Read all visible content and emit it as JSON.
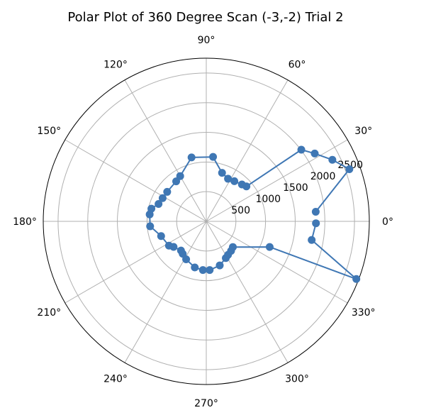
{
  "chart_data": {
    "type": "scatter",
    "projection": "polar",
    "title": "Polar Plot of 360 Degree Scan (-3,-2) Trial 2",
    "theta_ticks": [
      "0°",
      "30°",
      "60°",
      "90°",
      "120°",
      "150°",
      "180°",
      "210°",
      "240°",
      "270°",
      "300°",
      "330°"
    ],
    "r_ticks": [
      "500",
      "1000",
      "1500",
      "2000",
      "2500"
    ],
    "r_tick_values": [
      500,
      1000,
      1500,
      2000,
      2500
    ],
    "rlim": [
      0,
      2750
    ],
    "grid": true,
    "line_color": "#3f77b4",
    "marker": "circle",
    "series": [
      {
        "points": [
          {
            "theta": 5,
            "r": 1853
          },
          {
            "theta": 20,
            "r": 2568
          },
          {
            "theta": 26,
            "r": 2366
          },
          {
            "theta": 32,
            "r": 2157
          },
          {
            "theta": 37,
            "r": 2007
          },
          {
            "theta": 41,
            "r": 897
          },
          {
            "theta": 46,
            "r": 865
          },
          {
            "theta": 55,
            "r": 826
          },
          {
            "theta": 63,
            "r": 806
          },
          {
            "theta": 72,
            "r": 860
          },
          {
            "theta": 84,
            "r": 1092
          },
          {
            "theta": 103,
            "r": 1106
          },
          {
            "theta": 120,
            "r": 881
          },
          {
            "theta": 127,
            "r": 844
          },
          {
            "theta": 143,
            "r": 826
          },
          {
            "theta": 152,
            "r": 834
          },
          {
            "theta": 160,
            "r": 857
          },
          {
            "theta": 167,
            "r": 950
          },
          {
            "theta": 173,
            "r": 962
          },
          {
            "theta": 185,
            "r": 951
          },
          {
            "theta": 198,
            "r": 801
          },
          {
            "theta": 213,
            "r": 751
          },
          {
            "theta": 218,
            "r": 700
          },
          {
            "theta": 229,
            "r": 651
          },
          {
            "theta": 234,
            "r": 676
          },
          {
            "theta": 242,
            "r": 724
          },
          {
            "theta": 256,
            "r": 801
          },
          {
            "theta": 266,
            "r": 822
          },
          {
            "theta": 274,
            "r": 823
          },
          {
            "theta": 287,
            "r": 776
          },
          {
            "theta": 298,
            "r": 701
          },
          {
            "theta": 303,
            "r": 673
          },
          {
            "theta": 310,
            "r": 650
          },
          {
            "theta": 316,
            "r": 623
          },
          {
            "theta": 338,
            "r": 1153
          },
          {
            "theta": 339,
            "r": 2711
          },
          {
            "theta": 350,
            "r": 1805
          },
          {
            "theta": 359,
            "r": 1850
          }
        ]
      }
    ]
  }
}
